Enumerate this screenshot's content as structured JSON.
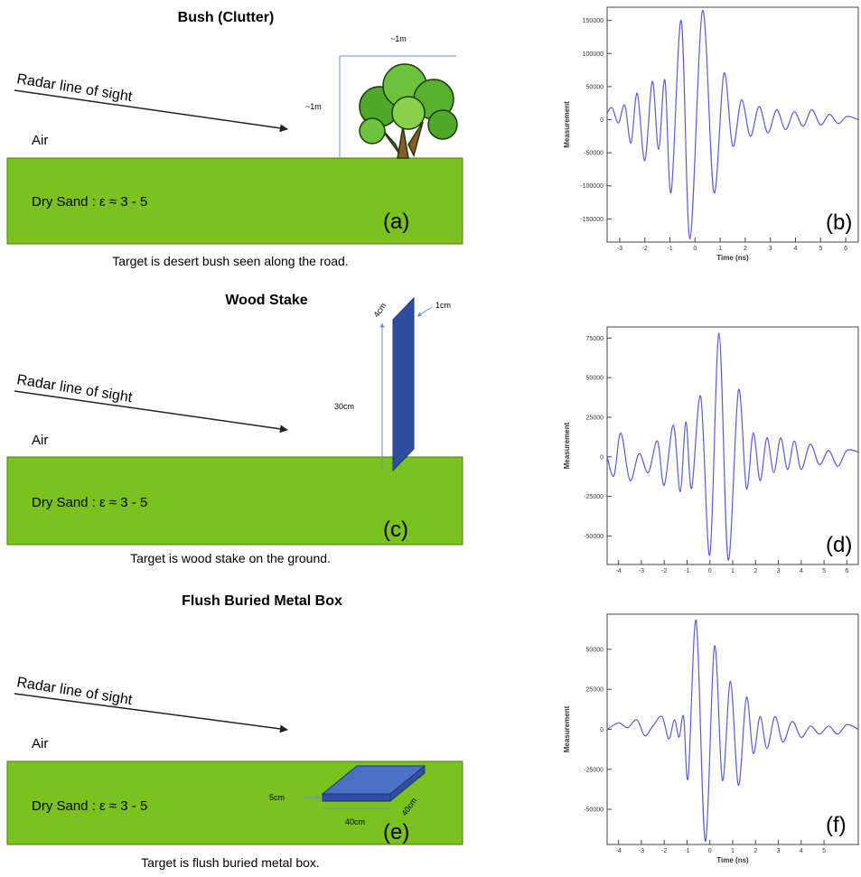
{
  "panels": [
    {
      "title": "Bush (Clutter)",
      "radar": "Radar line of sight",
      "air": "Air",
      "soil": "Dry Sand : ε ≈ 3 - 5",
      "label": "(a)",
      "caption": "Target is desert bush seen along the road.",
      "dims": [
        "~1m",
        "~1m"
      ]
    },
    {
      "title": "Wood Stake",
      "radar": "Radar line of sight",
      "air": "Air",
      "soil": "Dry Sand : ε ≈ 3 - 5",
      "label": "(c)",
      "caption": "Target is wood stake on the ground.",
      "dims": [
        "4cm",
        "1cm",
        "30cm"
      ]
    },
    {
      "title": "Flush Buried Metal Box",
      "radar": "Radar line of sight",
      "air": "Air",
      "soil": "Dry Sand : ε ≈ 3 - 5",
      "label": "(e)",
      "caption": "Target is flush buried metal box.",
      "dims": [
        "5cm",
        "40cm",
        "40cm"
      ]
    }
  ],
  "chart_data": [
    {
      "type": "line",
      "label": "(b)",
      "ylabel": "Measurement",
      "xlabel": "Time (ns)",
      "color": "#5b5bd6",
      "x": [
        -3.5,
        -3.3,
        -3.05,
        -2.8,
        -2.55,
        -2.3,
        -2.0,
        -1.7,
        -1.45,
        -1.2,
        -0.95,
        -0.55,
        -0.2,
        0.3,
        0.75,
        1.15,
        1.5,
        1.85,
        2.2,
        2.55,
        2.9,
        3.25,
        3.6,
        3.95,
        4.3,
        4.65,
        5.0,
        5.35,
        5.7,
        6.05,
        6.5
      ],
      "values": [
        10000,
        18000,
        -5000,
        22000,
        -35000,
        40000,
        -62000,
        58000,
        -45000,
        60000,
        -110000,
        150000,
        -180000,
        165000,
        -110000,
        70000,
        -40000,
        30000,
        -25000,
        20000,
        -20000,
        15000,
        -15000,
        12000,
        -10000,
        15000,
        -8000,
        8000,
        -6000,
        5000,
        0
      ],
      "xlim": [
        -3.5,
        6.5
      ],
      "ylim": [
        -185000,
        170000
      ],
      "xticks": [
        -3,
        -2,
        -1,
        0,
        1,
        2,
        3,
        4,
        5,
        6
      ],
      "yticks": [
        150000,
        100000,
        50000,
        0,
        -50000,
        -100000,
        -150000
      ]
    },
    {
      "type": "line",
      "label": "(d)",
      "ylabel": "Measurement",
      "color": "#5b5bd6",
      "x": [
        -4.5,
        -4.2,
        -3.9,
        -3.5,
        -3.1,
        -2.7,
        -2.3,
        -2.0,
        -1.6,
        -1.3,
        -1.05,
        -0.8,
        -0.4,
        0.0,
        0.4,
        0.8,
        1.25,
        1.6,
        1.9,
        2.2,
        2.5,
        2.8,
        3.1,
        3.4,
        3.7,
        4.0,
        4.4,
        4.8,
        5.2,
        5.6,
        6.0,
        6.5
      ],
      "values": [
        0,
        -12000,
        15000,
        -15000,
        2000,
        -10000,
        10000,
        -18000,
        20000,
        -22000,
        22000,
        -20000,
        38000,
        -62000,
        78000,
        -65000,
        42000,
        -20000,
        15000,
        -15000,
        12000,
        -10000,
        12000,
        -8000,
        10000,
        -8000,
        8000,
        -5000,
        4000,
        -6000,
        4000,
        3000
      ],
      "xlim": [
        -4.5,
        6.5
      ],
      "ylim": [
        -68000,
        82000
      ],
      "xticks": [
        -4,
        -3,
        -2,
        -1,
        0,
        1,
        2,
        3,
        4,
        5,
        6
      ],
      "yticks": [
        75000,
        50000,
        25000,
        0,
        -25000,
        -50000
      ]
    },
    {
      "type": "line",
      "label": "(f)",
      "ylabel": "Measurement",
      "xlabel": "Time (ns)",
      "color": "#5b5bd6",
      "x": [
        -4.5,
        -4.0,
        -3.6,
        -3.2,
        -2.85,
        -2.5,
        -2.1,
        -1.8,
        -1.55,
        -1.35,
        -1.15,
        -0.95,
        -0.6,
        -0.2,
        0.2,
        0.55,
        0.9,
        1.25,
        1.6,
        1.9,
        2.2,
        2.5,
        2.85,
        3.2,
        3.6,
        4.0,
        4.4,
        4.8,
        5.2,
        5.6,
        6.0,
        6.5
      ],
      "values": [
        0,
        4000,
        1000,
        6000,
        -4000,
        2000,
        8000,
        -6000,
        6000,
        -5000,
        8000,
        -30000,
        68000,
        -70000,
        52000,
        -32000,
        30000,
        -35000,
        20000,
        -15000,
        8000,
        -12000,
        8000,
        -8000,
        5000,
        -5000,
        2000,
        -3000,
        2000,
        -3000,
        3000,
        0
      ],
      "xlim": [
        -4.5,
        6.5
      ],
      "ylim": [
        -72000,
        72000
      ],
      "xticks": [
        -4,
        -3,
        -2,
        -1,
        0,
        1,
        2,
        3,
        4,
        5
      ],
      "yticks": [
        50000,
        25000,
        0,
        -25000,
        -50000
      ]
    }
  ]
}
